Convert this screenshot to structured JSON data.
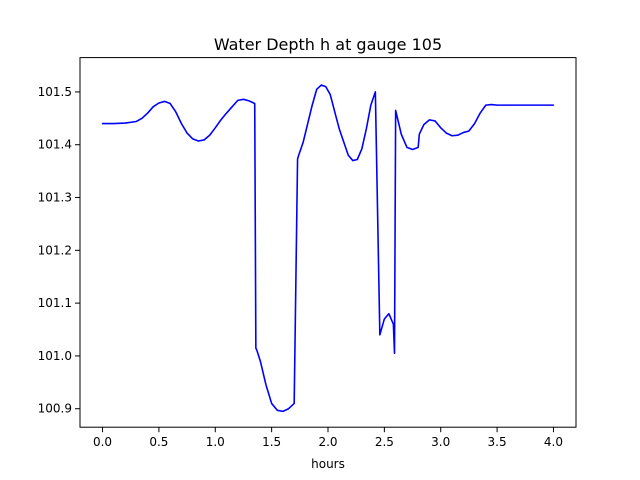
{
  "chart_data": {
    "type": "line",
    "title": "Water Depth h at gauge 105",
    "xlabel": "hours",
    "ylabel": "",
    "xlim": [
      -0.2,
      4.2
    ],
    "ylim": [
      100.865,
      101.565
    ],
    "xticks": [
      0.0,
      0.5,
      1.0,
      1.5,
      2.0,
      2.5,
      3.0,
      3.5,
      4.0
    ],
    "xtick_labels": [
      "0.0",
      "0.5",
      "1.0",
      "1.5",
      "2.0",
      "2.5",
      "3.0",
      "3.5",
      "4.0"
    ],
    "yticks": [
      100.9,
      101.0,
      101.1,
      101.2,
      101.3,
      101.4,
      101.5
    ],
    "ytick_labels": [
      "100.9",
      "101.0",
      "101.1",
      "101.2",
      "101.3",
      "101.4",
      "101.5"
    ],
    "grid": false,
    "line_color": "#0000ff",
    "series": [
      {
        "x": [
          0.0,
          0.1,
          0.2,
          0.3,
          0.35,
          0.4,
          0.45,
          0.5,
          0.55,
          0.6,
          0.65,
          0.7,
          0.75,
          0.8,
          0.85,
          0.9,
          0.95,
          1.0,
          1.05,
          1.1,
          1.15,
          1.2,
          1.25,
          1.3,
          1.35,
          1.36,
          1.37,
          1.4,
          1.45,
          1.5,
          1.55,
          1.6,
          1.65,
          1.7,
          1.73,
          1.74,
          1.78,
          1.82,
          1.86,
          1.9,
          1.94,
          1.98,
          2.02,
          2.06,
          2.1,
          2.14,
          2.18,
          2.22,
          2.26,
          2.3,
          2.34,
          2.38,
          2.42,
          2.46,
          2.5,
          2.54,
          2.58,
          2.59,
          2.6,
          2.65,
          2.7,
          2.75,
          2.8,
          2.81,
          2.85,
          2.9,
          2.95,
          3.0,
          3.05,
          3.1,
          3.15,
          3.2,
          3.25,
          3.3,
          3.35,
          3.4,
          3.45,
          3.5,
          3.55,
          3.6,
          3.65,
          3.7,
          3.75,
          3.8,
          3.85,
          3.9,
          3.95,
          4.0
        ],
        "y": [
          101.44,
          101.44,
          101.441,
          101.444,
          101.45,
          101.46,
          101.472,
          101.479,
          101.482,
          101.478,
          101.462,
          101.44,
          101.422,
          101.411,
          101.407,
          101.409,
          101.418,
          101.432,
          101.447,
          101.46,
          101.472,
          101.484,
          101.486,
          101.483,
          101.478,
          101.015,
          101.01,
          100.99,
          100.945,
          100.91,
          100.897,
          100.895,
          100.9,
          100.91,
          101.373,
          101.38,
          101.405,
          101.44,
          101.475,
          101.505,
          101.513,
          101.51,
          101.495,
          101.462,
          101.43,
          101.405,
          101.38,
          101.37,
          101.372,
          101.392,
          101.43,
          101.475,
          101.5,
          101.04,
          101.07,
          101.08,
          101.06,
          101.005,
          101.465,
          101.42,
          101.395,
          101.391,
          101.395,
          101.42,
          101.438,
          101.447,
          101.445,
          101.432,
          101.422,
          101.417,
          101.418,
          101.423,
          101.426,
          101.44,
          101.46,
          101.475,
          101.476,
          101.475,
          101.475,
          101.475,
          101.475,
          101.475,
          101.475,
          101.475,
          101.475,
          101.475,
          101.475,
          101.475
        ]
      }
    ]
  }
}
